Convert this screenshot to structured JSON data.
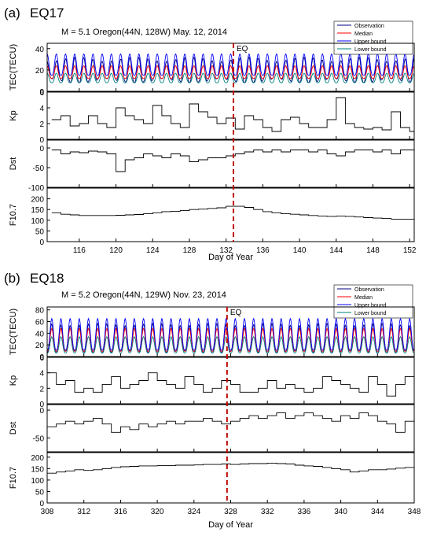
{
  "chart_data": [
    {
      "type": "line",
      "panel_label": "(a)",
      "panel_name": "EQ17",
      "title": "M = 5.1 Oregon(44N, 128W) May. 12, 2014",
      "xlabel": "Day of Year",
      "xlim": [
        112.5,
        152.5
      ],
      "xticks": [
        116,
        120,
        124,
        128,
        132,
        136,
        140,
        144,
        148,
        152
      ],
      "eq_day": 132.8,
      "eq_label": "EQ",
      "legend": [
        "Observation",
        "Median",
        "Upper bound",
        "Lower bound"
      ],
      "subplots": [
        {
          "ylabel": "TEC(TECU)",
          "ylim": [
            0,
            45
          ],
          "yticks": [
            0,
            20,
            40
          ],
          "series": [
            {
              "name": "Observation",
              "color": "#000080",
              "diurnal": {
                "min": 10,
                "max": 30
              }
            },
            {
              "name": "Median",
              "color": "#ff0000",
              "diurnal": {
                "min": 12,
                "max": 24
              }
            },
            {
              "name": "Upper bound",
              "color": "#0000ff",
              "diurnal": {
                "min": 15,
                "max": 35
              }
            },
            {
              "name": "Lower bound",
              "color": "#008080",
              "diurnal": {
                "min": 8,
                "max": 17
              }
            }
          ]
        },
        {
          "ylabel": "Kp",
          "ylim": [
            0,
            6
          ],
          "yticks": [
            0,
            2,
            4,
            6
          ],
          "x": [
            113,
            114,
            115,
            116,
            117,
            118,
            119,
            120,
            121,
            122,
            123,
            124,
            125,
            126,
            127,
            128,
            129,
            130,
            131,
            132,
            133,
            134,
            135,
            136,
            137,
            138,
            139,
            140,
            141,
            142,
            143,
            144,
            145,
            146,
            147,
            148,
            149,
            150,
            151,
            152
          ],
          "values": [
            2.5,
            3,
            1.7,
            2,
            3,
            2,
            1.5,
            4,
            3,
            2.5,
            2,
            4.3,
            3,
            2,
            1.5,
            4.5,
            3.5,
            2.8,
            2,
            2.7,
            1.3,
            3,
            2.5,
            1.5,
            1,
            2.5,
            2.8,
            2,
            1.5,
            1.5,
            2.5,
            5.3,
            2,
            1.5,
            1.3,
            1.5,
            1.2,
            3.5,
            1.5,
            1
          ]
        },
        {
          "ylabel": "Dst",
          "ylim": [
            -100,
            20
          ],
          "yticks": [
            -100,
            -50,
            0
          ],
          "x": [
            113,
            114,
            115,
            116,
            117,
            118,
            119,
            120,
            121,
            122,
            123,
            124,
            125,
            126,
            127,
            128,
            129,
            130,
            131,
            132,
            133,
            134,
            135,
            136,
            137,
            138,
            139,
            140,
            141,
            142,
            143,
            144,
            145,
            146,
            147,
            148,
            149,
            150,
            151,
            152
          ],
          "values": [
            -5,
            -15,
            -10,
            -12,
            -8,
            -10,
            -15,
            -60,
            -30,
            -25,
            -15,
            -20,
            -25,
            -15,
            -20,
            -35,
            -30,
            -25,
            -25,
            -20,
            -15,
            -10,
            -5,
            -10,
            -5,
            -10,
            -5,
            -5,
            -10,
            -5,
            -15,
            -20,
            -10,
            -5,
            -5,
            -10,
            -5,
            -15,
            -5,
            -5
          ]
        },
        {
          "ylabel": "F10.7",
          "ylim": [
            0,
            250
          ],
          "yticks": [
            0,
            50,
            100,
            150,
            200
          ],
          "x": [
            113,
            114,
            115,
            116,
            117,
            118,
            119,
            120,
            121,
            122,
            123,
            124,
            125,
            126,
            127,
            128,
            129,
            130,
            131,
            132,
            133,
            134,
            135,
            136,
            137,
            138,
            139,
            140,
            141,
            142,
            143,
            144,
            145,
            146,
            147,
            148,
            149,
            150,
            151,
            152
          ],
          "values": [
            135,
            128,
            125,
            122,
            122,
            122,
            122,
            123,
            125,
            127,
            130,
            135,
            140,
            142,
            145,
            150,
            152,
            155,
            158,
            165,
            165,
            160,
            150,
            140,
            135,
            130,
            128,
            125,
            122,
            120,
            118,
            120,
            118,
            115,
            112,
            110,
            108,
            105,
            105,
            105
          ]
        }
      ]
    },
    {
      "type": "line",
      "panel_label": "(b)",
      "panel_name": "EQ18",
      "title": "M = 5.2 Oregon(44N, 129W) Nov. 23, 2014",
      "xlabel": "Day of Year",
      "xlim": [
        308,
        348
      ],
      "xticks": [
        308,
        312,
        316,
        320,
        324,
        328,
        332,
        336,
        340,
        344,
        348
      ],
      "eq_day": 327.6,
      "eq_label": "EQ",
      "legend": [
        "Observation",
        "Median",
        "Upper bound",
        "Lower bound"
      ],
      "subplots": [
        {
          "ylabel": "TEC(TECU)",
          "ylim": [
            0,
            85
          ],
          "yticks": [
            0,
            20,
            40,
            60,
            80
          ],
          "series": [
            {
              "name": "Observation",
              "color": "#000080",
              "diurnal": {
                "min": 8,
                "max": 55
              }
            },
            {
              "name": "Median",
              "color": "#ff0000",
              "diurnal": {
                "min": 9,
                "max": 48
              }
            },
            {
              "name": "Upper bound",
              "color": "#0000ff",
              "diurnal": {
                "min": 11,
                "max": 65
              }
            },
            {
              "name": "Lower bound",
              "color": "#008080",
              "diurnal": {
                "min": 6,
                "max": 34
              }
            }
          ]
        },
        {
          "ylabel": "Kp",
          "ylim": [
            0,
            6
          ],
          "yticks": [
            0,
            2,
            4,
            6
          ],
          "x": [
            308,
            309,
            310,
            311,
            312,
            313,
            314,
            315,
            316,
            317,
            318,
            319,
            320,
            321,
            322,
            323,
            324,
            325,
            326,
            327,
            328,
            329,
            330,
            331,
            332,
            333,
            334,
            335,
            336,
            337,
            338,
            339,
            340,
            341,
            342,
            343,
            344,
            345,
            346,
            347
          ],
          "values": [
            4,
            2.5,
            3,
            1.5,
            2,
            1.5,
            2.5,
            3.5,
            2,
            2.5,
            3,
            4,
            3,
            2.5,
            2,
            3.5,
            2.5,
            1.5,
            2,
            3,
            2.5,
            1.5,
            1.5,
            2,
            3,
            2,
            2.5,
            2,
            1.5,
            2,
            3.5,
            3,
            2.5,
            2,
            1.5,
            3.5,
            2.5,
            1,
            2.5,
            3.5
          ]
        },
        {
          "ylabel": "Dst",
          "ylim": [
            -75,
            10
          ],
          "yticks": [
            -50,
            0
          ],
          "x": [
            308,
            309,
            310,
            311,
            312,
            313,
            314,
            315,
            316,
            317,
            318,
            319,
            320,
            321,
            322,
            323,
            324,
            325,
            326,
            327,
            328,
            329,
            330,
            331,
            332,
            333,
            334,
            335,
            336,
            337,
            338,
            339,
            340,
            341,
            342,
            343,
            344,
            345,
            346,
            347
          ],
          "values": [
            -30,
            -25,
            -20,
            -25,
            -20,
            -15,
            -25,
            -40,
            -30,
            -35,
            -25,
            -30,
            -25,
            -20,
            -25,
            -20,
            -20,
            -15,
            -20,
            -25,
            -20,
            -15,
            -10,
            -15,
            -10,
            -5,
            -15,
            -10,
            -5,
            -10,
            -15,
            -20,
            -10,
            -15,
            -5,
            -10,
            -20,
            -25,
            -40,
            -20
          ]
        },
        {
          "ylabel": "F10.7",
          "ylim": [
            0,
            220
          ],
          "yticks": [
            0,
            50,
            100,
            150,
            200
          ],
          "x": [
            308,
            309,
            310,
            311,
            312,
            313,
            314,
            315,
            316,
            317,
            318,
            319,
            320,
            321,
            322,
            323,
            324,
            325,
            326,
            327,
            328,
            329,
            330,
            331,
            332,
            333,
            334,
            335,
            336,
            337,
            338,
            339,
            340,
            341,
            342,
            343,
            344,
            345,
            346,
            347
          ],
          "values": [
            130,
            135,
            140,
            145,
            142,
            145,
            150,
            155,
            158,
            160,
            162,
            162,
            163,
            163,
            165,
            165,
            166,
            168,
            168,
            170,
            168,
            170,
            172,
            172,
            174,
            172,
            170,
            165,
            162,
            160,
            155,
            150,
            145,
            135,
            140,
            145,
            145,
            148,
            152,
            155
          ]
        }
      ]
    }
  ]
}
